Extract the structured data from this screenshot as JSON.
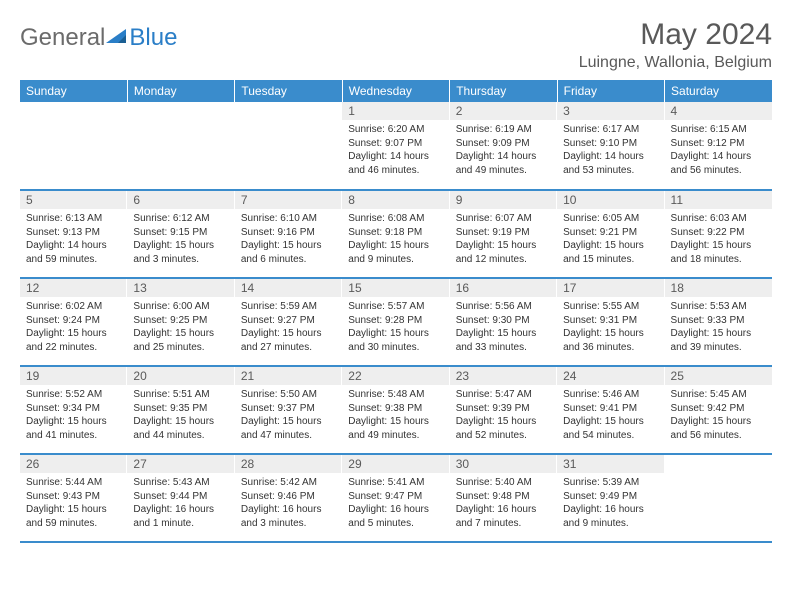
{
  "logo": {
    "part1": "General",
    "part2": "Blue"
  },
  "title": "May 2024",
  "location": "Luingne, Wallonia, Belgium",
  "colors": {
    "header_bg": "#3a8ccc",
    "header_text": "#ffffff",
    "daynum_bg": "#eeeeee",
    "body_text": "#333333",
    "title_text": "#595959",
    "border": "#3a8ccc"
  },
  "weekdays": [
    "Sunday",
    "Monday",
    "Tuesday",
    "Wednesday",
    "Thursday",
    "Friday",
    "Saturday"
  ],
  "weeks": [
    [
      null,
      null,
      null,
      {
        "n": "1",
        "sunrise": "6:20 AM",
        "sunset": "9:07 PM",
        "daylight": "14 hours and 46 minutes."
      },
      {
        "n": "2",
        "sunrise": "6:19 AM",
        "sunset": "9:09 PM",
        "daylight": "14 hours and 49 minutes."
      },
      {
        "n": "3",
        "sunrise": "6:17 AM",
        "sunset": "9:10 PM",
        "daylight": "14 hours and 53 minutes."
      },
      {
        "n": "4",
        "sunrise": "6:15 AM",
        "sunset": "9:12 PM",
        "daylight": "14 hours and 56 minutes."
      }
    ],
    [
      {
        "n": "5",
        "sunrise": "6:13 AM",
        "sunset": "9:13 PM",
        "daylight": "14 hours and 59 minutes."
      },
      {
        "n": "6",
        "sunrise": "6:12 AM",
        "sunset": "9:15 PM",
        "daylight": "15 hours and 3 minutes."
      },
      {
        "n": "7",
        "sunrise": "6:10 AM",
        "sunset": "9:16 PM",
        "daylight": "15 hours and 6 minutes."
      },
      {
        "n": "8",
        "sunrise": "6:08 AM",
        "sunset": "9:18 PM",
        "daylight": "15 hours and 9 minutes."
      },
      {
        "n": "9",
        "sunrise": "6:07 AM",
        "sunset": "9:19 PM",
        "daylight": "15 hours and 12 minutes."
      },
      {
        "n": "10",
        "sunrise": "6:05 AM",
        "sunset": "9:21 PM",
        "daylight": "15 hours and 15 minutes."
      },
      {
        "n": "11",
        "sunrise": "6:03 AM",
        "sunset": "9:22 PM",
        "daylight": "15 hours and 18 minutes."
      }
    ],
    [
      {
        "n": "12",
        "sunrise": "6:02 AM",
        "sunset": "9:24 PM",
        "daylight": "15 hours and 22 minutes."
      },
      {
        "n": "13",
        "sunrise": "6:00 AM",
        "sunset": "9:25 PM",
        "daylight": "15 hours and 25 minutes."
      },
      {
        "n": "14",
        "sunrise": "5:59 AM",
        "sunset": "9:27 PM",
        "daylight": "15 hours and 27 minutes."
      },
      {
        "n": "15",
        "sunrise": "5:57 AM",
        "sunset": "9:28 PM",
        "daylight": "15 hours and 30 minutes."
      },
      {
        "n": "16",
        "sunrise": "5:56 AM",
        "sunset": "9:30 PM",
        "daylight": "15 hours and 33 minutes."
      },
      {
        "n": "17",
        "sunrise": "5:55 AM",
        "sunset": "9:31 PM",
        "daylight": "15 hours and 36 minutes."
      },
      {
        "n": "18",
        "sunrise": "5:53 AM",
        "sunset": "9:33 PM",
        "daylight": "15 hours and 39 minutes."
      }
    ],
    [
      {
        "n": "19",
        "sunrise": "5:52 AM",
        "sunset": "9:34 PM",
        "daylight": "15 hours and 41 minutes."
      },
      {
        "n": "20",
        "sunrise": "5:51 AM",
        "sunset": "9:35 PM",
        "daylight": "15 hours and 44 minutes."
      },
      {
        "n": "21",
        "sunrise": "5:50 AM",
        "sunset": "9:37 PM",
        "daylight": "15 hours and 47 minutes."
      },
      {
        "n": "22",
        "sunrise": "5:48 AM",
        "sunset": "9:38 PM",
        "daylight": "15 hours and 49 minutes."
      },
      {
        "n": "23",
        "sunrise": "5:47 AM",
        "sunset": "9:39 PM",
        "daylight": "15 hours and 52 minutes."
      },
      {
        "n": "24",
        "sunrise": "5:46 AM",
        "sunset": "9:41 PM",
        "daylight": "15 hours and 54 minutes."
      },
      {
        "n": "25",
        "sunrise": "5:45 AM",
        "sunset": "9:42 PM",
        "daylight": "15 hours and 56 minutes."
      }
    ],
    [
      {
        "n": "26",
        "sunrise": "5:44 AM",
        "sunset": "9:43 PM",
        "daylight": "15 hours and 59 minutes."
      },
      {
        "n": "27",
        "sunrise": "5:43 AM",
        "sunset": "9:44 PM",
        "daylight": "16 hours and 1 minute."
      },
      {
        "n": "28",
        "sunrise": "5:42 AM",
        "sunset": "9:46 PM",
        "daylight": "16 hours and 3 minutes."
      },
      {
        "n": "29",
        "sunrise": "5:41 AM",
        "sunset": "9:47 PM",
        "daylight": "16 hours and 5 minutes."
      },
      {
        "n": "30",
        "sunrise": "5:40 AM",
        "sunset": "9:48 PM",
        "daylight": "16 hours and 7 minutes."
      },
      {
        "n": "31",
        "sunrise": "5:39 AM",
        "sunset": "9:49 PM",
        "daylight": "16 hours and 9 minutes."
      },
      null
    ]
  ],
  "labels": {
    "sunrise": "Sunrise: ",
    "sunset": "Sunset: ",
    "daylight": "Daylight: "
  }
}
